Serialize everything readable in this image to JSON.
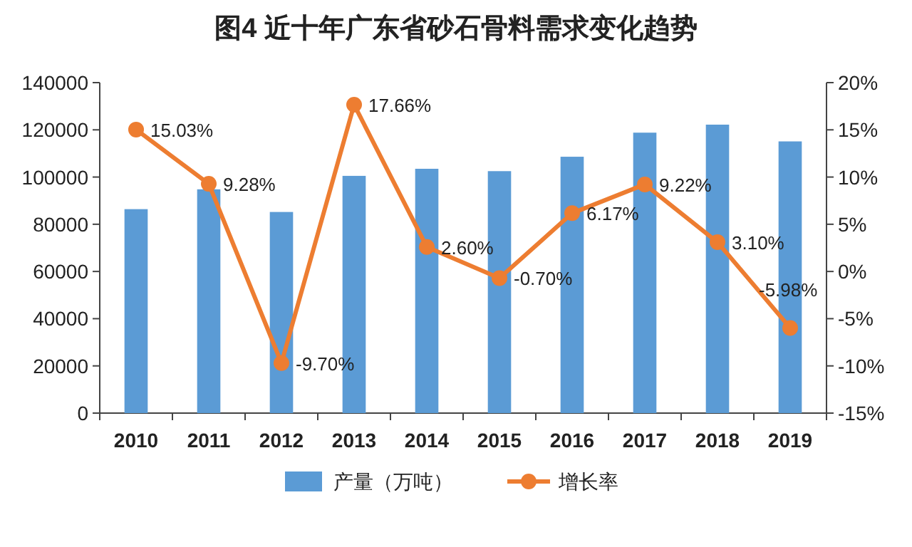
{
  "chart_data": {
    "type": "bar",
    "title": "图4  近十年广东省砂石骨料需求变化趋势",
    "categories": [
      "2010",
      "2011",
      "2012",
      "2013",
      "2014",
      "2015",
      "2016",
      "2017",
      "2018",
      "2019"
    ],
    "series": [
      {
        "name": "产量（万吨）",
        "color": "#5b9bd5",
        "values": [
          86400,
          94800,
          85200,
          100500,
          103500,
          102500,
          108600,
          118800,
          122200,
          115100
        ]
      },
      {
        "name": "增长率",
        "type": "line",
        "axis": "y2",
        "color": "#ed7d31",
        "marker": "circle",
        "values": [
          15.03,
          9.28,
          -9.7,
          17.66,
          2.6,
          -0.7,
          6.17,
          9.22,
          3.1,
          -5.98
        ],
        "value_labels": [
          "15.03%",
          "9.28%",
          "-9.70%",
          "17.66%",
          "2.60%",
          "-0.70%",
          "6.17%",
          "9.22%",
          "3.10%",
          "-5.98%"
        ]
      }
    ],
    "ylim": [
      0,
      140000
    ],
    "yticks": [
      0,
      20000,
      40000,
      60000,
      80000,
      100000,
      120000,
      140000
    ],
    "y2lim": [
      -15,
      20
    ],
    "y2ticks": [
      {
        "value": -15,
        "label": "-15%"
      },
      {
        "value": -10,
        "label": "-10%"
      },
      {
        "value": -5,
        "label": "-5%"
      },
      {
        "value": 0,
        "label": "0%"
      },
      {
        "value": 5,
        "label": "5%"
      },
      {
        "value": 10,
        "label": "10%"
      },
      {
        "value": 15,
        "label": "15%"
      },
      {
        "value": 20,
        "label": "20%"
      }
    ],
    "grid": false,
    "legend": "bottom"
  }
}
